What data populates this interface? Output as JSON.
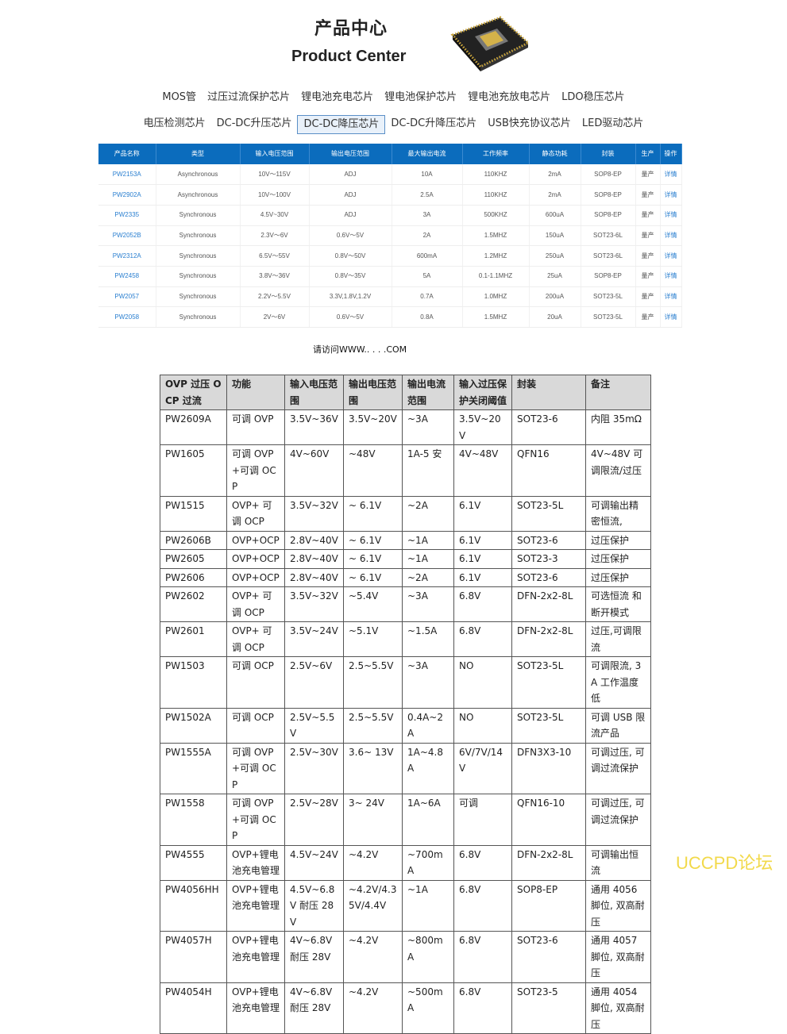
{
  "header": {
    "title_cn": "产品中心",
    "title_en": "Product Center"
  },
  "nav": {
    "row1": [
      "MOS管",
      "过压过流保护芯片",
      "锂电池充电芯片",
      "锂电池保护芯片",
      "锂电池充放电芯片",
      "LDO稳压芯片"
    ],
    "row2": [
      "电压检测芯片",
      "DC-DC升压芯片",
      "DC-DC降压芯片",
      "DC-DC升降压芯片",
      "USB快充协议芯片",
      "LED驱动芯片"
    ],
    "selected": "DC-DC降压芯片"
  },
  "product_table": {
    "headers": [
      "产品名称",
      "类型",
      "输入电压范围",
      "输出电压范围",
      "最大输出电流",
      "工作频率",
      "静态功耗",
      "封装",
      "生产",
      "操作"
    ],
    "rows": [
      [
        "PW2153A",
        "Asynchronous",
        "10V～115V",
        "ADJ",
        "10A",
        "110KHZ",
        "2mA",
        "SOP8-EP",
        "量产",
        "详情"
      ],
      [
        "PW2902A",
        "Asynchronous",
        "10V～100V",
        "ADJ",
        "2.5A",
        "110KHZ",
        "2mA",
        "SOP8-EP",
        "量产",
        "详情"
      ],
      [
        "PW2335",
        "Synchronous",
        "4.5V~30V",
        "ADJ",
        "3A",
        "500KHZ",
        "600uA",
        "SOP8-EP",
        "量产",
        "详情"
      ],
      [
        "PW2052B",
        "Synchronous",
        "2.3V～6V",
        "0.6V～5V",
        "2A",
        "1.5MHZ",
        "150uA",
        "SOT23-6L",
        "量产",
        "详情"
      ],
      [
        "PW2312A",
        "Synchronous",
        "6.5V～55V",
        "0.8V～50V",
        "600mA",
        "1.2MHZ",
        "250uA",
        "SOT23-6L",
        "量产",
        "详情"
      ],
      [
        "PW2458",
        "Synchronous",
        "3.8V～36V",
        "0.8V～35V",
        "5A",
        "0.1-1.1MHZ",
        "25uA",
        "SOP8-EP",
        "量产",
        "详情"
      ],
      [
        "PW2057",
        "Synchronous",
        "2.2V～5.5V",
        "3.3V,1.8V,1.2V",
        "0.7A",
        "1.0MHZ",
        "200uA",
        "SOT23-5L",
        "量产",
        "详情"
      ],
      [
        "PW2058",
        "Synchronous",
        "2V～6V",
        "0.6V～5V",
        "0.8A",
        "1.5MHZ",
        "20uA",
        "SOT23-5L",
        "量产",
        "详情"
      ]
    ]
  },
  "visit_text": "请访问WWW.. .  .   .COM",
  "ovp_table": {
    "headers": [
      "OVP 过压 OCP 过流",
      "功能",
      "输入电压范围",
      "输出电压范围",
      "输出电流范围",
      "输入过压保护关闭阈值",
      "封装",
      "备注"
    ],
    "rows": [
      [
        "PW2609A",
        "可调 OVP",
        "3.5V~36V",
        "3.5V~20V",
        "~3A",
        "3.5V~20V",
        "SOT23-6",
        "内阻 35mΩ"
      ],
      [
        "PW1605",
        "可调 OVP+可调 OCP",
        "4V~60V",
        "~48V",
        "1A-5 安",
        "4V~48V",
        "QFN16",
        "4V~48V 可调限流/过压"
      ],
      [
        "PW1515",
        "OVP+ 可调 OCP",
        "3.5V~32V",
        "~ 6.1V",
        "~2A",
        "6.1V",
        "SOT23-5L",
        "可调输出精密恒流,"
      ],
      [
        "PW2606B",
        "OVP+OCP",
        "2.8V~40V",
        "~ 6.1V",
        "~1A",
        "6.1V",
        "SOT23-6",
        "过压保护"
      ],
      [
        "PW2605",
        "OVP+OCP",
        "2.8V~40V",
        "~ 6.1V",
        "~1A",
        "6.1V",
        "SOT23-3",
        "过压保护"
      ],
      [
        "PW2606",
        "OVP+OCP",
        "2.8V~40V",
        "~ 6.1V",
        "~2A",
        "6.1V",
        "SOT23-6",
        "过压保护"
      ],
      [
        "PW2602",
        "OVP+ 可调 OCP",
        "3.5V~32V",
        "~5.4V",
        "~3A",
        "6.8V",
        "DFN-2x2-8L",
        "可选恒流 和断开模式"
      ],
      [
        "PW2601",
        "OVP+ 可调 OCP",
        "3.5V~24V",
        "~5.1V",
        "~1.5A",
        "6.8V",
        "DFN-2x2-8L",
        "过压,可调限流"
      ],
      [
        "PW1503",
        "可调 OCP",
        "2.5V~6V",
        "2.5~5.5V",
        "~3A",
        "NO",
        "SOT23-5L",
        "可调限流, 3A 工作温度低"
      ],
      [
        "PW1502A",
        "可调 OCP",
        "2.5V~5.5V",
        "2.5~5.5V",
        "0.4A~2A",
        "NO",
        "SOT23-5L",
        "可调 USB 限流产品"
      ],
      [
        "PW1555A",
        "可调 OVP+可调 OCP",
        "2.5V~30V",
        "3.6~ 13V",
        "1A~4.8A",
        "6V/7V/14V",
        "DFN3X3-10",
        "可调过压, 可调过流保护"
      ],
      [
        "PW1558",
        "可调 OVP+可调 OCP",
        "2.5V~28V",
        "3~ 24V",
        "1A~6A",
        "可调",
        "QFN16-10",
        "可调过压, 可调过流保护"
      ],
      [
        "PW4555",
        "OVP+锂电池充电管理",
        "4.5V~24V",
        "~4.2V",
        "~700mA",
        "6.8V",
        "DFN-2x2-8L",
        "可调输出恒流"
      ],
      [
        "PW4056HH",
        "OVP+锂电池充电管理",
        "4.5V~6.8V 耐压 28V",
        "~4.2V/4.35V/4.4V",
        "~1A",
        "6.8V",
        "SOP8-EP",
        "通用 4056 脚位, 双高耐压"
      ],
      [
        "PW4057H",
        "OVP+锂电池充电管理",
        "4V~6.8V 耐压 28V",
        "~4.2V",
        "~800mA",
        "6.8V",
        "SOT23-6",
        "通用 4057 脚位, 双高耐压"
      ],
      [
        "PW4054H",
        "OVP+锂电池充电管理",
        "4V~6.8V 耐压 28V",
        "~4.2V",
        "~500mA",
        "6.8V",
        "SOT23-5",
        "通用 4054 脚位, 双高耐压"
      ]
    ]
  },
  "watermark": "UCCPD论坛",
  "colors": {
    "header_blue": "#0b6cbd",
    "link_blue": "#2a7fd0",
    "watermark": "#f2d94a"
  }
}
